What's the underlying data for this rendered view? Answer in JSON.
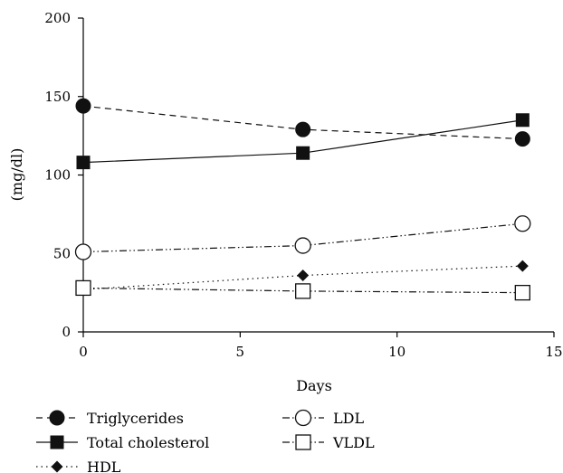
{
  "chart_data": {
    "type": "line",
    "xlabel": "Days",
    "ylabel": "(mg/dl)",
    "xlim": [
      0,
      15
    ],
    "ylim": [
      0,
      200
    ],
    "xticks": [
      0,
      5,
      10,
      15
    ],
    "yticks": [
      0,
      50,
      100,
      150,
      200
    ],
    "x": [
      0,
      7,
      14
    ],
    "grid": false,
    "legend_position": "bottom",
    "series": [
      {
        "name": "Triglycerides",
        "values": [
          144,
          129,
          123
        ],
        "marker": "filled-circle",
        "line": "dashed"
      },
      {
        "name": "Total cholesterol",
        "values": [
          108,
          114,
          135
        ],
        "marker": "filled-square",
        "line": "solid"
      },
      {
        "name": "HDL",
        "values": [
          27,
          36,
          42
        ],
        "marker": "filled-diamond",
        "line": "dotted"
      },
      {
        "name": "LDL",
        "values": [
          51,
          55,
          69
        ],
        "marker": "open-circle",
        "line": "dash-dot-dot"
      },
      {
        "name": "VLDL",
        "values": [
          28,
          26,
          25
        ],
        "marker": "open-square",
        "line": "dash-dot-dot"
      }
    ]
  }
}
